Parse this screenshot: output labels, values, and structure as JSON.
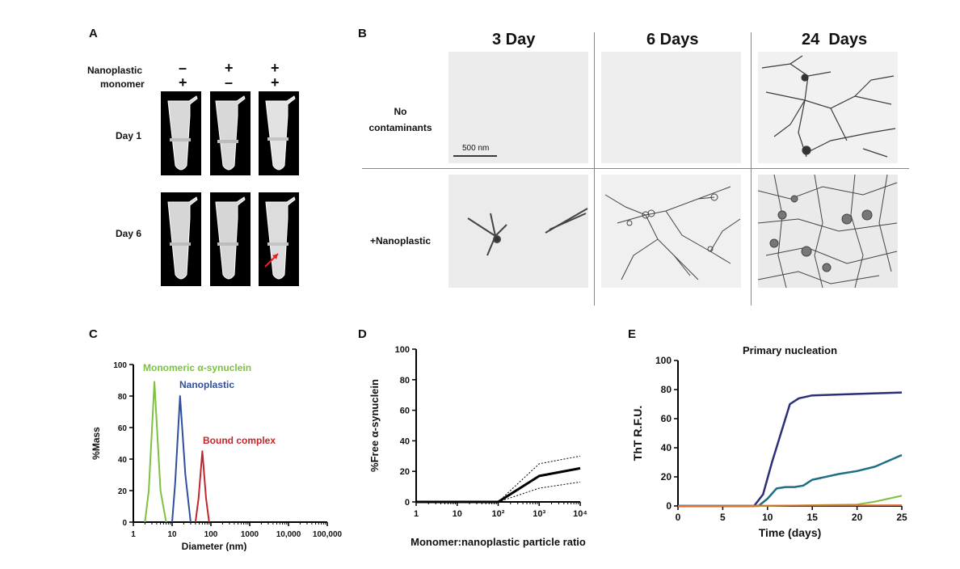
{
  "panels": {
    "a": {
      "letter": "A",
      "row_labels": [
        "Nanoplastic",
        "monomer"
      ],
      "signs": [
        [
          "–",
          "+",
          "+"
        ],
        [
          "+",
          "–",
          "+"
        ]
      ],
      "day_labels": [
        "Day 1",
        "Day 6"
      ]
    },
    "b": {
      "letter": "B",
      "columns": [
        "3 Day",
        "6 Days",
        "24  Days"
      ],
      "rows": [
        [
          "No",
          "contaminants"
        ],
        [
          "+Nanoplastic"
        ]
      ],
      "scale_bar": "500 nm"
    },
    "c": {
      "letter": "C",
      "labels": {
        "monomer": "Monomeric α-synuclein",
        "nano": "Nanoplastic",
        "bound": "Bound complex"
      }
    },
    "d": {
      "letter": "D"
    },
    "e": {
      "letter": "E"
    }
  },
  "colors": {
    "green": "#7cc142",
    "blue": "#2e4fa0",
    "red": "#c0272d",
    "navy": "#2b2f78",
    "teal": "#1f6e84",
    "orange": "#e8692b"
  },
  "chart_data": [
    {
      "id": "C",
      "type": "line",
      "xscale": "log",
      "xlabel": "Diameter (nm)",
      "ylabel": "%Mass",
      "xlim": [
        1,
        100000
      ],
      "ylim": [
        0,
        100
      ],
      "xticks": [
        "1",
        "10",
        "100",
        "1000",
        "10,000",
        "100,000"
      ],
      "yticks": [
        "0",
        "20",
        "40",
        "60",
        "80",
        "100"
      ],
      "series": [
        {
          "name": "Monomeric α-synuclein",
          "color": "#7cc142",
          "x": [
            2,
            2.5,
            3.5,
            5,
            7
          ],
          "y": [
            0,
            20,
            89,
            20,
            0
          ]
        },
        {
          "name": "Nanoplastic",
          "color": "#2e4fa0",
          "x": [
            10,
            12,
            16,
            22,
            30
          ],
          "y": [
            0,
            25,
            80,
            30,
            0
          ]
        },
        {
          "name": "Bound complex",
          "color": "#c0272d",
          "x": [
            40,
            48,
            60,
            75,
            90
          ],
          "y": [
            0,
            15,
            45,
            15,
            0
          ]
        }
      ]
    },
    {
      "id": "D",
      "type": "line",
      "xscale": "log",
      "xlabel": "Monomer:nanoplastic particle ratio",
      "ylabel": "%Free α-synuclein",
      "xlim": [
        1,
        10000
      ],
      "ylim": [
        0,
        100
      ],
      "xticks": [
        "1",
        "10",
        "10²",
        "10³",
        "10⁴"
      ],
      "yticks": [
        "0",
        "20",
        "40",
        "60",
        "80",
        "100"
      ],
      "series": [
        {
          "x": [
            1,
            100,
            1000,
            10000
          ],
          "y": [
            0,
            0,
            17,
            22
          ]
        },
        {
          "x": [
            100,
            1000,
            10000
          ],
          "y": [
            0,
            25,
            30
          ]
        },
        {
          "x": [
            100,
            1000,
            10000
          ],
          "y": [
            0,
            9,
            13
          ]
        }
      ]
    },
    {
      "id": "E",
      "type": "line",
      "title": "Primary nucleation",
      "xlabel": "Time (days)",
      "ylabel": "ThT R.F.U.",
      "xlim": [
        0,
        25
      ],
      "ylim": [
        0,
        100
      ],
      "xticks": [
        "0",
        "5",
        "10",
        "15",
        "20",
        "25"
      ],
      "yticks": [
        "0",
        "20",
        "40",
        "60",
        "80",
        "100"
      ],
      "series": [
        {
          "color": "#2b2f78",
          "x": [
            0,
            8.5,
            9.5,
            10.5,
            11.5,
            12.5,
            13.5,
            15,
            20,
            25
          ],
          "y": [
            0,
            0,
            8,
            30,
            50,
            70,
            74,
            76,
            77,
            78
          ]
        },
        {
          "color": "#1f6e84",
          "x": [
            0,
            9,
            10,
            11,
            12,
            13,
            14,
            15,
            18,
            20,
            22,
            25
          ],
          "y": [
            0,
            0,
            5,
            12,
            13,
            13,
            14,
            18,
            22,
            24,
            27,
            35
          ]
        },
        {
          "color": "#7cc142",
          "x": [
            0,
            10,
            20,
            22,
            25
          ],
          "y": [
            0,
            0,
            1,
            3,
            7
          ]
        },
        {
          "color": "#e8692b",
          "x": [
            0,
            25
          ],
          "y": [
            0,
            0.5
          ]
        }
      ]
    }
  ]
}
